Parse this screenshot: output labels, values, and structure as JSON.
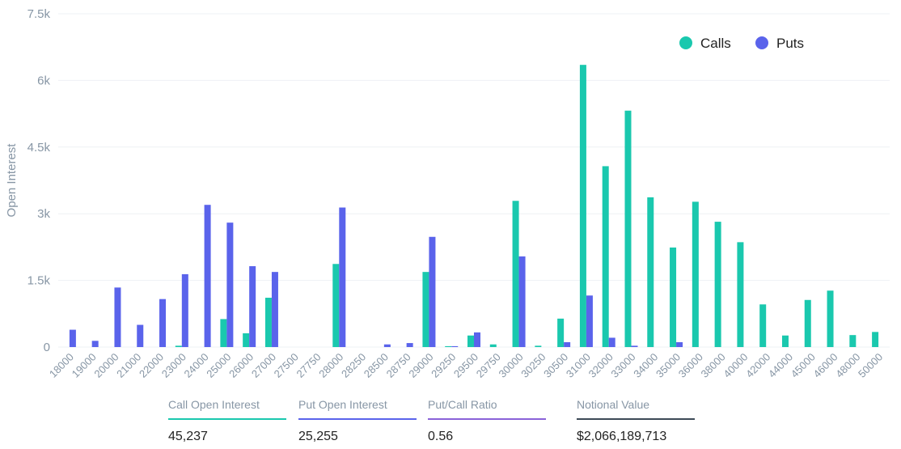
{
  "chart_data": {
    "type": "bar",
    "title": "",
    "xlabel": "",
    "ylabel": "Open Interest",
    "ylim": [
      0,
      7500
    ],
    "yticks": [
      0,
      1500,
      3000,
      4500,
      6000,
      7500
    ],
    "ytick_labels": [
      "0",
      "1.5k",
      "3k",
      "4.5k",
      "6k",
      "7.5k"
    ],
    "grid": true,
    "legend_position": "top-right",
    "categories": [
      "18000",
      "19000",
      "20000",
      "21000",
      "22000",
      "23000",
      "24000",
      "25000",
      "26000",
      "27000",
      "27500",
      "27750",
      "28000",
      "28250",
      "28500",
      "28750",
      "29000",
      "29250",
      "29500",
      "29750",
      "30000",
      "30250",
      "30500",
      "31000",
      "32000",
      "33000",
      "34000",
      "35000",
      "36000",
      "38000",
      "40000",
      "42000",
      "44000",
      "45000",
      "46000",
      "48000",
      "50000"
    ],
    "series": [
      {
        "name": "Calls",
        "color": "#1ac8ae",
        "values": [
          0,
          0,
          0,
          0,
          0,
          30,
          0,
          630,
          310,
          1110,
          0,
          0,
          1870,
          0,
          0,
          0,
          1690,
          20,
          260,
          60,
          3290,
          30,
          640,
          6350,
          4070,
          5320,
          3370,
          2240,
          3270,
          2820,
          2360,
          960,
          260,
          1060,
          1270,
          270,
          340
        ]
      },
      {
        "name": "Puts",
        "color": "#5a63eb",
        "values": [
          390,
          140,
          1340,
          500,
          1080,
          1640,
          3200,
          2800,
          1820,
          1690,
          0,
          0,
          3140,
          0,
          60,
          90,
          2480,
          20,
          330,
          0,
          2040,
          0,
          110,
          1160,
          210,
          30,
          0,
          110,
          0,
          0,
          0,
          0,
          0,
          0,
          0,
          0,
          0
        ]
      }
    ]
  },
  "stats": [
    {
      "label": "Call Open Interest",
      "value": "45,237",
      "color": "#1ac8ae"
    },
    {
      "label": "Put Open Interest",
      "value": "25,255",
      "color": "#5a63eb"
    },
    {
      "label": "Put/Call Ratio",
      "value": "0.56",
      "color": "#8a62d8"
    },
    {
      "label": "Notional Value",
      "value": "$2,066,189,713",
      "color": "#3d4a57"
    }
  ]
}
